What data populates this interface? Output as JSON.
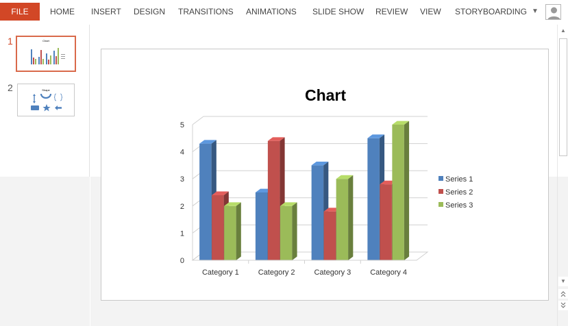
{
  "ribbon": {
    "file_label": "FILE",
    "tabs": [
      "HOME",
      "INSERT",
      "DESIGN",
      "TRANSITIONS",
      "ANIMATIONS",
      "SLIDE SHOW",
      "REVIEW",
      "VIEW",
      "STORYBOARDING"
    ],
    "file_color": "#d24726"
  },
  "thumbnails": {
    "slide1_number": "1",
    "slide2_number": "2",
    "selected_border": "#d9694a",
    "slide1_title": "Chart",
    "slide2_title": "Shape"
  },
  "icons": {
    "collapse": "chevron-down-icon",
    "account": "user-avatar-icon",
    "scroll_up": "scroll-up-icon",
    "scroll_down": "scroll-down-icon",
    "prev_slide": "previous-slide-icon",
    "next_slide": "next-slide-icon"
  },
  "chart_data": {
    "type": "bar",
    "title": "Chart",
    "categories": [
      "Category 1",
      "Category 2",
      "Category 3",
      "Category 4"
    ],
    "series": [
      {
        "name": "Series 1",
        "values": [
          4.3,
          2.5,
          3.5,
          4.5
        ],
        "color": "#4f81bd"
      },
      {
        "name": "Series 2",
        "values": [
          2.4,
          4.4,
          1.8,
          2.8
        ],
        "color": "#c0504d"
      },
      {
        "name": "Series 3",
        "values": [
          2.0,
          2.0,
          3.0,
          5.0
        ],
        "color": "#9bbb59"
      }
    ],
    "ylim": [
      0,
      5
    ],
    "yticks": [
      "0",
      "1",
      "2",
      "3",
      "4",
      "5"
    ],
    "grid": true,
    "legend_position": "right",
    "style": "3d-clustered-column"
  }
}
